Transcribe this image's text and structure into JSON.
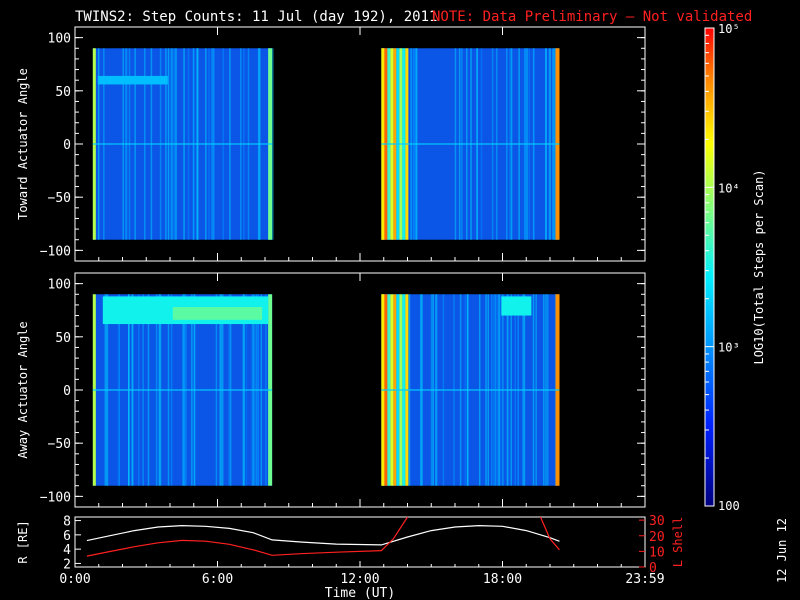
{
  "figure": {
    "title": "TWINS2: Step Counts: 11 Jul (day 192), 2011",
    "note": "NOTE: Data Preliminary — Not validated",
    "date_stamp": "12 Jun 12"
  },
  "chart_data": [
    {
      "type": "heatmap",
      "ylabel": "Toward Actuator Angle",
      "ylim": [
        -110,
        110
      ],
      "yticks": [
        "100",
        "50",
        "0",
        "−50",
        "−100"
      ],
      "xlim_hours": [
        0,
        24
      ],
      "data_blocks_hours": [
        [
          0.75,
          8.3
        ],
        [
          12.9,
          20.4
        ]
      ],
      "angle_range": [
        -90,
        90
      ],
      "colorscale": "log10"
    },
    {
      "type": "heatmap",
      "ylabel": "Away Actuator Angle",
      "ylim": [
        -110,
        110
      ],
      "yticks": [
        "100",
        "50",
        "0",
        "−50",
        "−100"
      ],
      "xlim_hours": [
        0,
        24
      ],
      "data_blocks_hours": [
        [
          0.75,
          8.3
        ],
        [
          12.9,
          20.4
        ]
      ],
      "angle_range": [
        -90,
        90
      ],
      "colorscale": "log10"
    },
    {
      "type": "line",
      "xlabel": "Time (UT)",
      "xticks": [
        "0:00",
        "6:00",
        "12:00",
        "18:00",
        "23:59"
      ],
      "x_hours": [
        0,
        6,
        12,
        18,
        24
      ],
      "ylabel_left": "R [RE]",
      "ylabel_right": "L Shell",
      "yticks_left": [
        "8",
        "6",
        "4",
        "2"
      ],
      "yticks_right": [
        "30",
        "20",
        "10",
        "0"
      ],
      "ylim_left": [
        1.5,
        8.5
      ],
      "ylim_right": [
        0,
        32
      ],
      "series": [
        {
          "color": "#ffffff",
          "axis": "left",
          "x": [
            0.5,
            1.5,
            2.5,
            3.5,
            4.5,
            5.5,
            6.5,
            7.5,
            8.3,
            9.5,
            11.0,
            12.9,
            14.0,
            15.0,
            16.0,
            17.0,
            18.0,
            19.0,
            20.0,
            20.4
          ],
          "y": [
            5.2,
            5.9,
            6.6,
            7.1,
            7.3,
            7.2,
            6.9,
            6.3,
            5.3,
            5.0,
            4.7,
            4.6,
            5.7,
            6.6,
            7.1,
            7.3,
            7.2,
            6.6,
            5.6,
            5.1
          ]
        },
        {
          "color": "#ff2020",
          "axis": "right",
          "x": [
            0.5,
            1.5,
            2.5,
            3.5,
            4.5,
            5.5,
            6.5,
            7.5,
            8.3,
            9.5,
            11.0,
            12.9,
            13.4,
            14.0
          ],
          "y": [
            7,
            10,
            13,
            15.5,
            17,
            16.5,
            14.5,
            11,
            7.5,
            8.5,
            9.5,
            10.5,
            18,
            32
          ]
        },
        {
          "color": "#ff2020",
          "axis": "right",
          "x": [
            19.6,
            20.0,
            20.4
          ],
          "y": [
            32,
            18,
            11
          ]
        }
      ]
    }
  ],
  "colorbar": {
    "label": "LOG10(Total Steps per Scan)",
    "tick_labels": [
      "100",
      "10³",
      "10⁴",
      "10⁵"
    ],
    "tick_exponents": [
      2,
      3,
      4,
      5
    ]
  }
}
